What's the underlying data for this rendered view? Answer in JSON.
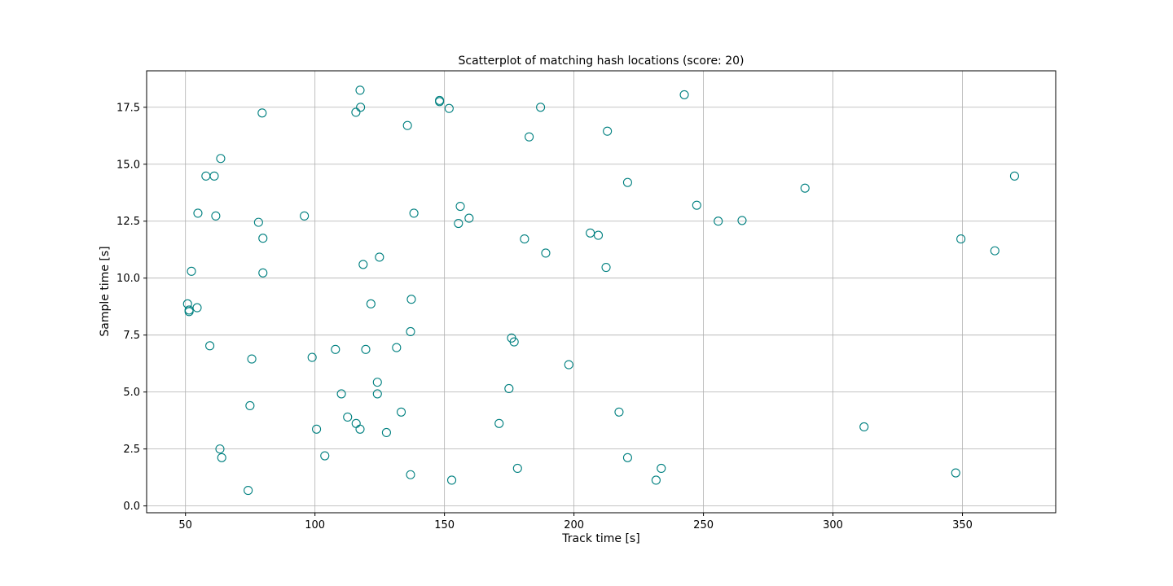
{
  "chart_data": {
    "type": "scatter",
    "title": "Scatterplot of matching hash locations (score: 20)",
    "xlabel": "Track time [s]",
    "ylabel": "Sample time [s]",
    "xlim": [
      35,
      386
    ],
    "ylim": [
      -0.3,
      19.1
    ],
    "xticks": [
      50,
      100,
      150,
      200,
      250,
      300,
      350
    ],
    "yticks": [
      0.0,
      2.5,
      5.0,
      7.5,
      10.0,
      12.5,
      15.0,
      17.5
    ],
    "xtick_labels": [
      "50",
      "100",
      "150",
      "200",
      "250",
      "300",
      "350"
    ],
    "ytick_labels": [
      "0.0",
      "2.5",
      "5.0",
      "7.5",
      "10.0",
      "12.5",
      "15.0",
      "17.5"
    ],
    "grid": true,
    "marker_color": "#008080",
    "points": [
      {
        "x": 79.6,
        "y": 17.25
      },
      {
        "x": 117.4,
        "y": 18.25
      },
      {
        "x": 117.6,
        "y": 17.5
      },
      {
        "x": 115.8,
        "y": 17.28
      },
      {
        "x": 148.1,
        "y": 17.8
      },
      {
        "x": 148.1,
        "y": 17.75
      },
      {
        "x": 151.8,
        "y": 17.45
      },
      {
        "x": 135.7,
        "y": 16.7
      },
      {
        "x": 187.1,
        "y": 17.5
      },
      {
        "x": 182.7,
        "y": 16.2
      },
      {
        "x": 212.9,
        "y": 16.45
      },
      {
        "x": 242.6,
        "y": 18.05
      },
      {
        "x": 63.6,
        "y": 15.25
      },
      {
        "x": 57.9,
        "y": 14.48
      },
      {
        "x": 61.1,
        "y": 14.48
      },
      {
        "x": 220.7,
        "y": 14.2
      },
      {
        "x": 370.1,
        "y": 14.48
      },
      {
        "x": 289.2,
        "y": 13.95
      },
      {
        "x": 54.8,
        "y": 12.85
      },
      {
        "x": 61.7,
        "y": 12.73
      },
      {
        "x": 78.2,
        "y": 12.45
      },
      {
        "x": 95.9,
        "y": 12.73
      },
      {
        "x": 138.2,
        "y": 12.85
      },
      {
        "x": 156.1,
        "y": 13.15
      },
      {
        "x": 155.4,
        "y": 12.4
      },
      {
        "x": 159.5,
        "y": 12.63
      },
      {
        "x": 247.4,
        "y": 13.2
      },
      {
        "x": 255.7,
        "y": 12.5
      },
      {
        "x": 264.9,
        "y": 12.53
      },
      {
        "x": 79.9,
        "y": 11.75
      },
      {
        "x": 180.9,
        "y": 11.72
      },
      {
        "x": 206.3,
        "y": 11.98
      },
      {
        "x": 209.4,
        "y": 11.88
      },
      {
        "x": 349.4,
        "y": 11.72
      },
      {
        "x": 362.5,
        "y": 11.2
      },
      {
        "x": 189.1,
        "y": 11.1
      },
      {
        "x": 124.9,
        "y": 10.92
      },
      {
        "x": 118.6,
        "y": 10.6
      },
      {
        "x": 212.4,
        "y": 10.47
      },
      {
        "x": 52.3,
        "y": 10.3
      },
      {
        "x": 79.9,
        "y": 10.23
      },
      {
        "x": 50.8,
        "y": 8.87
      },
      {
        "x": 51.4,
        "y": 8.53
      },
      {
        "x": 51.4,
        "y": 8.6
      },
      {
        "x": 54.5,
        "y": 8.7
      },
      {
        "x": 121.6,
        "y": 8.87
      },
      {
        "x": 137.2,
        "y": 9.07
      },
      {
        "x": 136.9,
        "y": 7.65
      },
      {
        "x": 175.9,
        "y": 7.37
      },
      {
        "x": 176.9,
        "y": 7.2
      },
      {
        "x": 59.4,
        "y": 7.03
      },
      {
        "x": 75.6,
        "y": 6.45
      },
      {
        "x": 98.9,
        "y": 6.52
      },
      {
        "x": 107.9,
        "y": 6.87
      },
      {
        "x": 119.6,
        "y": 6.87
      },
      {
        "x": 131.5,
        "y": 6.95
      },
      {
        "x": 198.0,
        "y": 6.2
      },
      {
        "x": 124.1,
        "y": 5.43
      },
      {
        "x": 124.1,
        "y": 4.92
      },
      {
        "x": 110.2,
        "y": 4.92
      },
      {
        "x": 174.9,
        "y": 5.15
      },
      {
        "x": 74.9,
        "y": 4.4
      },
      {
        "x": 133.3,
        "y": 4.12
      },
      {
        "x": 112.6,
        "y": 3.9
      },
      {
        "x": 115.9,
        "y": 3.62
      },
      {
        "x": 117.4,
        "y": 3.37
      },
      {
        "x": 100.6,
        "y": 3.37
      },
      {
        "x": 127.6,
        "y": 3.22
      },
      {
        "x": 171.1,
        "y": 3.62
      },
      {
        "x": 217.4,
        "y": 4.12
      },
      {
        "x": 312.0,
        "y": 3.47
      },
      {
        "x": 63.3,
        "y": 2.5
      },
      {
        "x": 64.0,
        "y": 2.12
      },
      {
        "x": 103.8,
        "y": 2.2
      },
      {
        "x": 220.7,
        "y": 2.12
      },
      {
        "x": 233.7,
        "y": 1.65
      },
      {
        "x": 231.7,
        "y": 1.13
      },
      {
        "x": 178.2,
        "y": 1.65
      },
      {
        "x": 152.8,
        "y": 1.13
      },
      {
        "x": 136.9,
        "y": 1.37
      },
      {
        "x": 74.2,
        "y": 0.68
      },
      {
        "x": 347.4,
        "y": 1.45
      }
    ]
  }
}
